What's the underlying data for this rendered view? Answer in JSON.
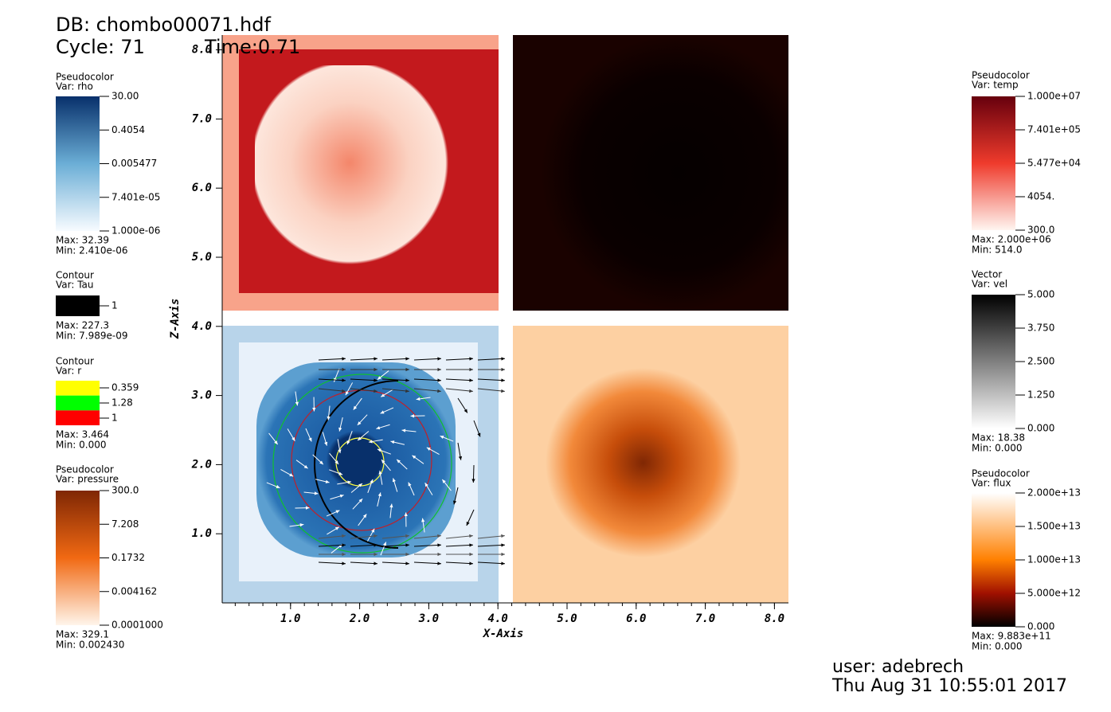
{
  "header": {
    "db": "DB: chombo00071.hdf",
    "cycle": "Cycle: 71",
    "time": "Time:0.71"
  },
  "legends_left": [
    {
      "title": "Pseudocolor",
      "var": "Var: rho",
      "ticks": [
        "30.00",
        "0.4054",
        "0.005477",
        "7.401e-05",
        "1.000e-06"
      ],
      "max": "Max:  32.39",
      "min": "Min:  2.410e-06"
    },
    {
      "title": "Contour",
      "var": "Var: Tau",
      "ticks": [
        "1"
      ],
      "max": "Max:  227.3",
      "min": "Min:  7.989e-09"
    },
    {
      "title": "Contour",
      "var": "Var: r",
      "ticks": [
        "0.359",
        "1.28",
        "1"
      ],
      "max": "Max:  3.464",
      "min": "Min:  0.000"
    },
    {
      "title": "Pseudocolor",
      "var": "Var: pressure",
      "ticks": [
        "300.0",
        "7.208",
        "0.1732",
        "0.004162",
        "0.0001000"
      ],
      "max": "Max:  329.1",
      "min": "Min:  0.002430"
    }
  ],
  "legends_right": [
    {
      "title": "Pseudocolor",
      "var": "Var: temp",
      "ticks": [
        "1.000e+07",
        "7.401e+05",
        "5.477e+04",
        "4054.",
        "300.0"
      ],
      "max": "Max:  2.000e+06",
      "min": "Min:  514.0"
    },
    {
      "title": "Vector",
      "var": "Var: vel",
      "ticks": [
        "5.000",
        "3.750",
        "2.500",
        "1.250",
        "0.000"
      ],
      "max": "Max:  18.38",
      "min": "Min:  0.000"
    },
    {
      "title": "Pseudocolor",
      "var": "Var: flux",
      "ticks": [
        "2.000e+13",
        "1.500e+13",
        "1.000e+13",
        "5.000e+12",
        "0.000"
      ],
      "max": "Max:  9.883e+11",
      "min": "Min:  0.000"
    }
  ],
  "axes": {
    "x_label": "X-Axis",
    "y_label": "Z-Axis",
    "x_ticks": [
      "1.0",
      "2.0",
      "3.0",
      "4.0",
      "5.0",
      "6.0",
      "7.0",
      "8.0"
    ],
    "y_ticks": [
      "1.0",
      "2.0",
      "3.0",
      "4.0",
      "5.0",
      "6.0",
      "7.0",
      "8.0"
    ]
  },
  "footer": {
    "user": "user: adebrech",
    "date": "Thu Aug 31 10:55:01 2017"
  }
}
